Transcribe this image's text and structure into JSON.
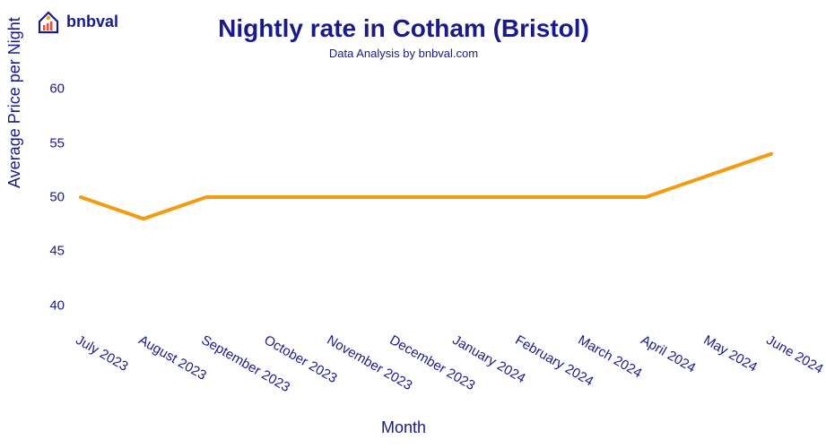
{
  "logo": {
    "text": "bnbval",
    "house_color": "#1a1a8a",
    "accent_color": "#f39c12",
    "bars_color": "#e74c3c"
  },
  "chart": {
    "type": "line",
    "title": "Nightly rate in Cotham (Bristol)",
    "subtitle": "Data Analysis by bnbval.com",
    "title_color": "#1a1a8a",
    "title_fontsize": 28,
    "subtitle_fontsize": 13,
    "background_color": "#ffffff",
    "x": {
      "label": "Month",
      "label_fontsize": 18,
      "tick_fontsize": 15,
      "tick_rotation_deg": 30,
      "categories": [
        "July 2023",
        "August 2023",
        "September 2023",
        "October 2023",
        "November 2023",
        "December 2023",
        "January 2024",
        "February 2024",
        "March 2024",
        "April 2024",
        "May 2024",
        "June 2024"
      ]
    },
    "y": {
      "label": "Average Price per Night",
      "label_fontsize": 18,
      "tick_fontsize": 15,
      "lim": [
        38,
        62
      ],
      "ticks": [
        40,
        45,
        50,
        55,
        60
      ]
    },
    "line": {
      "color": "#f39c12",
      "width": 4,
      "values": [
        50,
        48,
        50,
        50,
        50,
        50,
        50,
        50,
        50,
        50,
        52,
        54
      ]
    },
    "axis_text_color": "#1a1a8a"
  }
}
